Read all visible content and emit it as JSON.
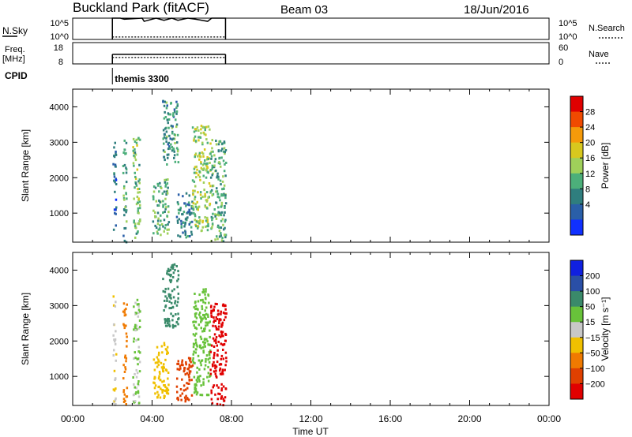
{
  "header": {
    "station": "Buckland Park (fitACF)",
    "beam": "Beam 03",
    "date": "18/Jun/2016"
  },
  "chart_data": [
    {
      "type": "line",
      "name": "noise-panel",
      "left_label": "N.Sky",
      "right_label": "N.Search",
      "left_ticks": [
        "10^5",
        "10^0"
      ],
      "right_ticks": [
        "10^5",
        "10^0"
      ],
      "x_hours": [
        2.0,
        2.0,
        2.4,
        2.6,
        3.5,
        3.6,
        4.2,
        4.6,
        5.0,
        5.3,
        5.8,
        6.2,
        6.8,
        7.0,
        7.7,
        7.7
      ],
      "sky_level": [
        0.0,
        1.0,
        1.0,
        0.95,
        1.0,
        0.85,
        1.0,
        0.9,
        1.0,
        0.9,
        1.0,
        0.95,
        0.85,
        1.0,
        1.0,
        0.0
      ],
      "search_level": 0.08
    },
    {
      "type": "line",
      "name": "freq-panel",
      "left_label_top": "Freq.",
      "left_label_bottom": "[MHz]",
      "right_label": "Nave",
      "left_ticks": [
        "18",
        "8"
      ],
      "right_ticks": [
        "60",
        "0"
      ],
      "freq_range": [
        2.0,
        7.7
      ],
      "freq_level": 0.45,
      "nave_level": 0.3
    },
    {
      "type": "annotation",
      "name": "cpid-panel",
      "label": "CPID",
      "program": "themis 3300",
      "program_start_hour": 2.0
    },
    {
      "type": "heatmap",
      "name": "power-panel",
      "xlabel": "Time UT",
      "ylabel": "Slant Range [km]",
      "x_ticks": [
        "00:00",
        "04:00",
        "08:00",
        "12:00",
        "16:00",
        "20:00",
        "00:00"
      ],
      "xlim": [
        0,
        24
      ],
      "ylim": [
        180,
        4500
      ],
      "y_ticks": [
        1000,
        2000,
        3000,
        4000
      ],
      "colorbar_label": "Power [dB]",
      "colorbar_ticks": [
        "28",
        "24",
        "20",
        "16",
        "12",
        "8",
        "4"
      ],
      "colorbar_colors": [
        "#e00000",
        "#f04a00",
        "#f59a0a",
        "#d8c81e",
        "#9fd05a",
        "#4caf7a",
        "#2f7e7e",
        "#2a5fa8",
        "#1030ff"
      ],
      "data_blocks": [
        {
          "hours": [
            2.0,
            2.15
          ],
          "range": [
            200,
            3300
          ],
          "value": 4
        },
        {
          "hours": [
            2.5,
            2.7
          ],
          "range": [
            200,
            3100
          ],
          "value": 8
        },
        {
          "hours": [
            3.0,
            3.35
          ],
          "range": [
            200,
            3200
          ],
          "value": 12
        },
        {
          "hours": [
            4.0,
            4.8
          ],
          "range": [
            400,
            2000
          ],
          "value": 10
        },
        {
          "hours": [
            4.5,
            5.3
          ],
          "range": [
            2400,
            4200
          ],
          "value": 8
        },
        {
          "hours": [
            5.2,
            6.0
          ],
          "range": [
            300,
            1600
          ],
          "value": 6
        },
        {
          "hours": [
            6.0,
            6.9
          ],
          "range": [
            500,
            3500
          ],
          "value": 14
        },
        {
          "hours": [
            6.9,
            7.7
          ],
          "range": [
            200,
            3100
          ],
          "value": 10
        }
      ]
    },
    {
      "type": "heatmap",
      "name": "velocity-panel",
      "xlabel": "Time UT",
      "ylabel": "Slant Range [km]",
      "x_ticks": [
        "00:00",
        "04:00",
        "08:00",
        "12:00",
        "16:00",
        "20:00",
        "00:00"
      ],
      "xlim": [
        0,
        24
      ],
      "ylim": [
        180,
        4500
      ],
      "y_ticks": [
        1000,
        2000,
        3000,
        4000
      ],
      "colorbar_label": "Velocity [m s⁻¹]",
      "colorbar_ticks": [
        "200",
        "100",
        "50",
        "15",
        "−15",
        "−50",
        "−100",
        "−200"
      ],
      "colorbar_colors": [
        "#1020e0",
        "#2a4fa6",
        "#3a8a6a",
        "#68c23a",
        "#c8c8c8",
        "#f0c000",
        "#f07a00",
        "#e04000",
        "#e00000"
      ],
      "data_blocks": [
        {
          "hours": [
            2.0,
            2.15
          ],
          "range": [
            200,
            3300
          ],
          "value": 0
        },
        {
          "hours": [
            2.5,
            2.7
          ],
          "range": [
            200,
            3100
          ],
          "value": -50
        },
        {
          "hours": [
            3.0,
            3.35
          ],
          "range": [
            200,
            3200
          ],
          "value": 30
        },
        {
          "hours": [
            4.0,
            4.8
          ],
          "range": [
            400,
            2000
          ],
          "value": -15
        },
        {
          "hours": [
            4.5,
            5.3
          ],
          "range": [
            2400,
            4200
          ],
          "value": 100
        },
        {
          "hours": [
            5.2,
            6.0
          ],
          "range": [
            300,
            1600
          ],
          "value": -100
        },
        {
          "hours": [
            6.0,
            6.9
          ],
          "range": [
            500,
            3500
          ],
          "value": 50
        },
        {
          "hours": [
            6.9,
            7.7
          ],
          "range": [
            200,
            3100
          ],
          "value": -200
        }
      ]
    }
  ]
}
